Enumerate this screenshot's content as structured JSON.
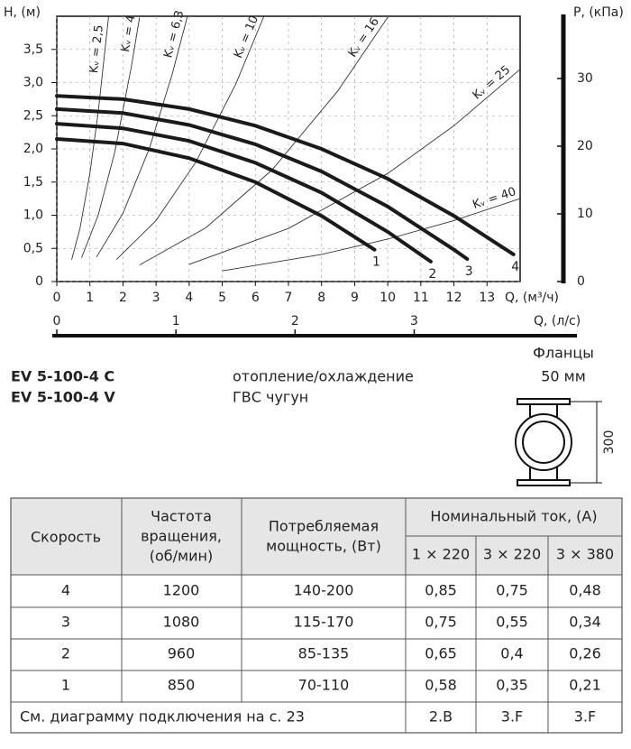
{
  "chart_data": {
    "type": "line",
    "ylabel": "H, (м)",
    "xlabel": "Q, (м³/ч)",
    "y2label": "P, (кПа)",
    "x2label": "Q, (л/с)",
    "xlim": [
      0,
      14
    ],
    "xticks": [
      0,
      1,
      2,
      3,
      4,
      5,
      6,
      7,
      8,
      9,
      10,
      11,
      12,
      13
    ],
    "ylim": [
      0,
      4
    ],
    "yticks": [
      0,
      {
        "value": 0.5,
        "label": "0,5"
      },
      {
        "value": 1,
        "label": "1,0"
      },
      {
        "value": 1.5,
        "label": "1,5"
      },
      {
        "value": 2,
        "label": "2,0"
      },
      {
        "value": 2.5,
        "label": "2,5"
      },
      {
        "value": 3,
        "label": "3,0"
      },
      {
        "value": 3.5,
        "label": "3,5"
      }
    ],
    "y2lim": [
      0,
      39.2
    ],
    "y2ticks": [
      0,
      10,
      20,
      30
    ],
    "x2lim": [
      0,
      3.889
    ],
    "x2ticks": [
      0,
      1,
      2,
      3
    ],
    "grid": true,
    "series": [
      {
        "name": "1",
        "color": "#1a1a1a",
        "x": [
          0,
          2,
          4,
          6,
          8,
          9.6
        ],
        "values": [
          2.15,
          2.08,
          1.86,
          1.5,
          0.99,
          0.48
        ]
      },
      {
        "name": "2",
        "color": "#1a1a1a",
        "x": [
          0,
          2,
          4,
          6,
          8,
          10,
          11.3
        ],
        "values": [
          2.38,
          2.31,
          2.12,
          1.79,
          1.34,
          0.75,
          0.3
        ]
      },
      {
        "name": "3",
        "color": "#1a1a1a",
        "x": [
          0,
          2,
          4,
          6,
          8,
          10,
          12,
          12.4
        ],
        "values": [
          2.6,
          2.54,
          2.36,
          2.07,
          1.66,
          1.13,
          0.48,
          0.34
        ]
      },
      {
        "name": "4",
        "color": "#1a1a1a",
        "x": [
          0,
          2,
          4,
          6,
          8,
          10,
          12,
          13.8
        ],
        "values": [
          2.8,
          2.75,
          2.6,
          2.35,
          2.0,
          1.55,
          0.99,
          0.41
        ]
      }
    ],
    "kv_series": [
      {
        "name": "Kᵥ = 2,5",
        "color": "#333333",
        "x": [
          0.45,
          0.7,
          1.0,
          1.25,
          1.566
        ],
        "values": [
          0.33,
          0.8,
          1.63,
          2.55,
          4.0
        ]
      },
      {
        "name": "Kᵥ = 4",
        "color": "#333333",
        "x": [
          0.75,
          1.25,
          1.75,
          2.25,
          2.5
        ],
        "values": [
          0.36,
          1.0,
          1.95,
          3.23,
          3.98
        ]
      },
      {
        "name": "Kᵥ = 6,3",
        "color": "#333333",
        "x": [
          1.2,
          2,
          2.8,
          3.5,
          3.94
        ],
        "values": [
          0.37,
          1.03,
          2.01,
          3.15,
          3.99
        ]
      },
      {
        "name": "Kᵥ = 10",
        "color": "#333333",
        "x": [
          1.8,
          3,
          4.2,
          5.4,
          6.26
        ],
        "values": [
          0.33,
          0.92,
          1.8,
          2.97,
          4.0
        ]
      },
      {
        "name": "Kᵥ = 16",
        "color": "#333333",
        "x": [
          2.5,
          4.5,
          6.5,
          8.5,
          10.02
        ],
        "values": [
          0.25,
          0.81,
          1.68,
          2.88,
          4.0
        ]
      },
      {
        "name": "Kᵥ = 25",
        "color": "#333333",
        "x": [
          4,
          7,
          10,
          12,
          14
        ],
        "values": [
          0.26,
          0.8,
          1.63,
          2.35,
          3.2
        ]
      },
      {
        "name": "Kᵥ = 40",
        "color": "#333333",
        "x": [
          5,
          8,
          10,
          12,
          14
        ],
        "values": [
          0.16,
          0.41,
          0.64,
          0.92,
          1.25
        ]
      }
    ]
  },
  "models": [
    {
      "name": "EV 5-100-4 C",
      "use": "отопление/охлаждение"
    },
    {
      "name": "EV 5-100-4 V",
      "use": "ГВС чугун"
    }
  ],
  "flange": {
    "title": "Фланцы",
    "size": "50 мм",
    "length": "300"
  },
  "table": {
    "header": {
      "speed": "Скорость",
      "rpm": [
        "Частота",
        "вращения,",
        "(об/мин)"
      ],
      "power": [
        "Потребляемая",
        "мощность, (Вт)"
      ],
      "current": "Номинальный ток, (А)",
      "current_cols": [
        "1 × 220",
        "3 × 220",
        "3 × 380"
      ]
    },
    "rows": [
      [
        "4",
        "1200",
        "140-200",
        "0,85",
        "0,75",
        "0,48"
      ],
      [
        "3",
        "1080",
        "115-170",
        "0,75",
        "0,55",
        "0,34"
      ],
      [
        "2",
        "960",
        "85-135",
        "0,65",
        "0,4",
        "0,26"
      ],
      [
        "1",
        "850",
        "70-110",
        "0,58",
        "0,35",
        "0,21"
      ]
    ],
    "footer": {
      "note": "См. диаграмму подключения на с. 23",
      "cells": [
        "2.B",
        "3.F",
        "3.F"
      ]
    }
  }
}
